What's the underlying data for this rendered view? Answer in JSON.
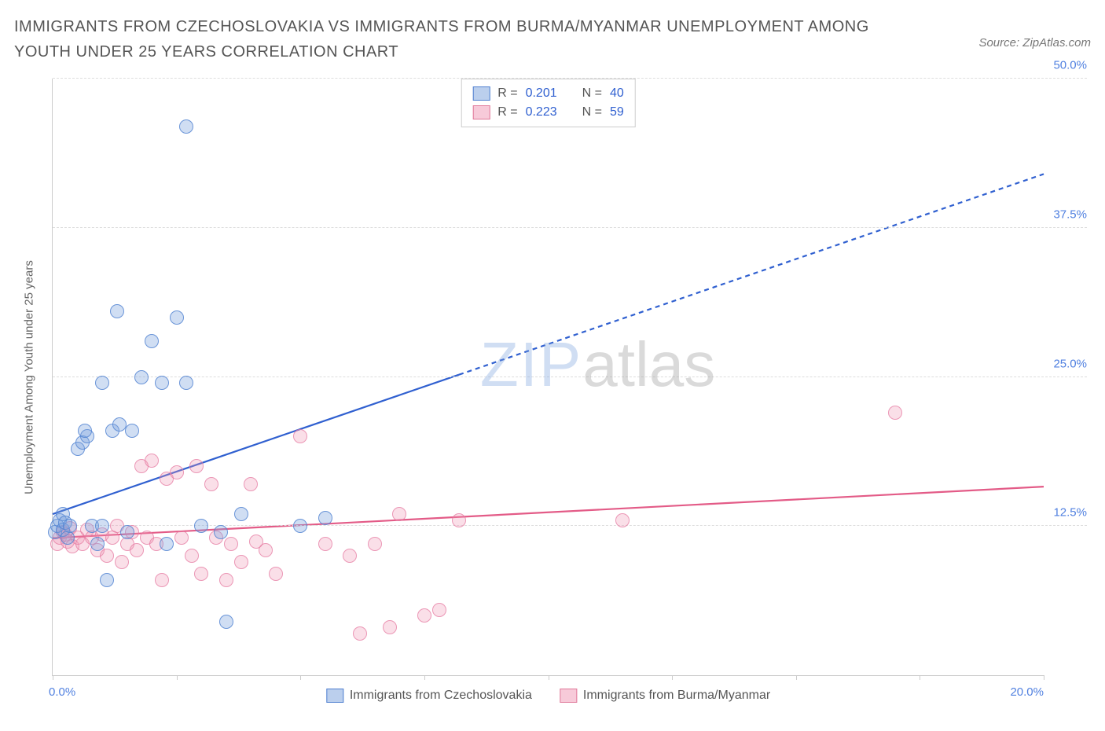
{
  "header": {
    "title": "IMMIGRANTS FROM CZECHOSLOVAKIA VS IMMIGRANTS FROM BURMA/MYANMAR UNEMPLOYMENT AMONG YOUTH UNDER 25 YEARS CORRELATION CHART",
    "source": "Source: ZipAtlas.com"
  },
  "chart": {
    "type": "scatter",
    "y_axis_label": "Unemployment Among Youth under 25 years",
    "x_min": 0.0,
    "x_max": 20.0,
    "y_min": 0.0,
    "y_max": 50.0,
    "y_ticks": [
      12.5,
      25.0,
      37.5,
      50.0
    ],
    "y_tick_labels": [
      "12.5%",
      "25.0%",
      "37.5%",
      "50.0%"
    ],
    "x_ticks": [
      0.0,
      2.5,
      5.0,
      7.5,
      10.0,
      12.5,
      15.0,
      17.5,
      20.0
    ],
    "x_tick_labels_visible": {
      "0.0": "0.0%",
      "20.0": "20.0%"
    },
    "grid_color": "#dddddd",
    "background_color": "#ffffff",
    "axis_color": "#cccccc",
    "tick_font_color": "#5080e0",
    "tick_font_size": 15,
    "marker_radius": 9,
    "series": {
      "blue": {
        "label": "Immigrants from Czechoslovakia",
        "fill": "rgba(120,160,220,0.35)",
        "stroke": "#5080d0",
        "R": "0.201",
        "N": "40",
        "trend": {
          "x1": 0.0,
          "y1": 13.5,
          "x2": 20.0,
          "y2": 42.0,
          "solid_until_x": 8.2,
          "color": "#3060d0",
          "width": 2.2
        },
        "points": [
          [
            0.05,
            12.0
          ],
          [
            0.1,
            12.5
          ],
          [
            0.15,
            13.0
          ],
          [
            0.2,
            12.2
          ],
          [
            0.2,
            13.5
          ],
          [
            0.25,
            12.8
          ],
          [
            0.3,
            11.5
          ],
          [
            0.35,
            12.5
          ],
          [
            0.5,
            19.0
          ],
          [
            0.6,
            19.5
          ],
          [
            0.7,
            20.0
          ],
          [
            0.65,
            20.5
          ],
          [
            0.8,
            12.5
          ],
          [
            0.9,
            11.0
          ],
          [
            1.0,
            12.5
          ],
          [
            1.1,
            8.0
          ],
          [
            1.2,
            20.5
          ],
          [
            1.3,
            30.5
          ],
          [
            1.0,
            24.5
          ],
          [
            1.35,
            21.0
          ],
          [
            1.5,
            12.0
          ],
          [
            1.6,
            20.5
          ],
          [
            1.8,
            25.0
          ],
          [
            2.0,
            28.0
          ],
          [
            2.2,
            24.5
          ],
          [
            2.5,
            30.0
          ],
          [
            2.7,
            46.0
          ],
          [
            2.7,
            24.5
          ],
          [
            2.3,
            11.0
          ],
          [
            3.0,
            12.5
          ],
          [
            3.4,
            12.0
          ],
          [
            3.5,
            4.5
          ],
          [
            3.8,
            13.5
          ],
          [
            5.0,
            12.5
          ],
          [
            5.5,
            13.2
          ]
        ]
      },
      "pink": {
        "label": "Immigrants from Burma/Myanmar",
        "fill": "rgba(240,150,180,0.30)",
        "stroke": "#e07899",
        "R": "0.223",
        "N": "59",
        "trend": {
          "x1": 0.0,
          "y1": 11.5,
          "x2": 20.0,
          "y2": 15.8,
          "color": "#e35b87",
          "width": 2.2
        },
        "points": [
          [
            0.1,
            11.0
          ],
          [
            0.15,
            11.5
          ],
          [
            0.2,
            12.0
          ],
          [
            0.25,
            11.8
          ],
          [
            0.3,
            11.2
          ],
          [
            0.35,
            12.3
          ],
          [
            0.4,
            10.8
          ],
          [
            0.5,
            11.5
          ],
          [
            0.6,
            11.0
          ],
          [
            0.7,
            12.2
          ],
          [
            0.8,
            11.5
          ],
          [
            0.9,
            10.5
          ],
          [
            1.0,
            11.8
          ],
          [
            1.1,
            10.0
          ],
          [
            1.2,
            11.5
          ],
          [
            1.3,
            12.5
          ],
          [
            1.4,
            9.5
          ],
          [
            1.5,
            11.0
          ],
          [
            1.6,
            12.0
          ],
          [
            1.7,
            10.5
          ],
          [
            1.8,
            17.5
          ],
          [
            1.9,
            11.5
          ],
          [
            2.0,
            18.0
          ],
          [
            2.1,
            11.0
          ],
          [
            2.2,
            8.0
          ],
          [
            2.3,
            16.5
          ],
          [
            2.5,
            17.0
          ],
          [
            2.6,
            11.5
          ],
          [
            2.8,
            10.0
          ],
          [
            2.9,
            17.5
          ],
          [
            3.0,
            8.5
          ],
          [
            3.2,
            16.0
          ],
          [
            3.3,
            11.5
          ],
          [
            3.5,
            8.0
          ],
          [
            3.6,
            11.0
          ],
          [
            3.8,
            9.5
          ],
          [
            4.0,
            16.0
          ],
          [
            4.1,
            11.2
          ],
          [
            4.3,
            10.5
          ],
          [
            5.0,
            20.0
          ],
          [
            4.5,
            8.5
          ],
          [
            5.5,
            11.0
          ],
          [
            6.0,
            10.0
          ],
          [
            6.2,
            3.5
          ],
          [
            6.8,
            4.0
          ],
          [
            6.5,
            11.0
          ],
          [
            7.0,
            13.5
          ],
          [
            7.5,
            5.0
          ],
          [
            7.8,
            5.5
          ],
          [
            8.2,
            13.0
          ],
          [
            11.5,
            13.0
          ],
          [
            17.0,
            22.0
          ]
        ]
      }
    },
    "legend_stats": {
      "r_label": "R =",
      "n_label": "N ="
    },
    "watermark": {
      "part1": "ZIP",
      "part2": "atlas"
    }
  }
}
